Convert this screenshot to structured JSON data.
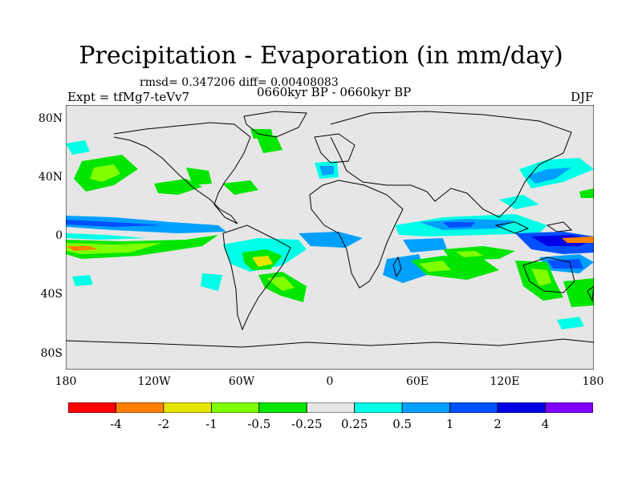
{
  "title": "Precipitation - Evaporation (in mm/day)",
  "stats": "rmsd= 0.347206 diff= 0.00408083",
  "experiment": "Expt = tfMg7-teVv7",
  "period": "0660kyr BP - 0660kyr BP",
  "season": "DJF",
  "y_ticks": [
    "80N",
    "40N",
    "0",
    "40S",
    "80S"
  ],
  "x_ticks": [
    "180",
    "120W",
    "60W",
    "0",
    "60E",
    "120E",
    "180"
  ],
  "colorbar": {
    "colors": [
      "#ff0000",
      "#ff8000",
      "#e6e600",
      "#80ff00",
      "#00e600",
      "#e6e6e6",
      "#00ffe6",
      "#00a0ff",
      "#0050ff",
      "#0000e6",
      "#8000ff"
    ],
    "labels": [
      "-4",
      "-2",
      "-1",
      "-0.5",
      "-0.25",
      "0.25",
      "0.5",
      "1",
      "2",
      "4"
    ]
  },
  "colors": {
    "ocean_background": "#e6e6e6",
    "coastline": "#000000"
  }
}
